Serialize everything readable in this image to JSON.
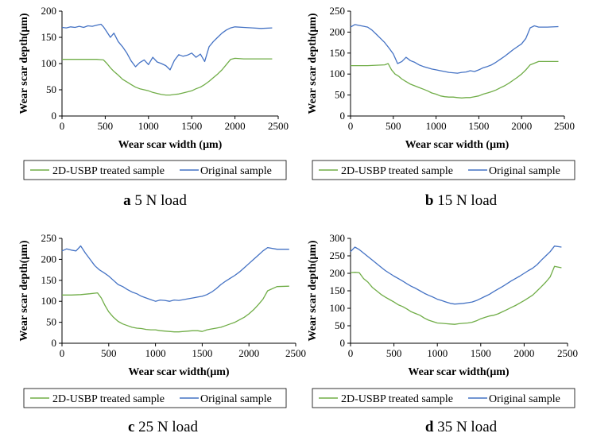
{
  "colors": {
    "treated": "#70ad47",
    "original": "#4472c4",
    "axis": "#000000",
    "legend_border": "#000000"
  },
  "chart_data": [
    {
      "type": "line",
      "panel": "a",
      "caption": {
        "letter": "a",
        "text": "5 N load"
      },
      "xlabel": "Wear scar width (μm)",
      "ylabel": "Wear scar depth(μm)",
      "xlim": [
        0,
        2500
      ],
      "ylim": [
        0,
        200
      ],
      "xticks": [
        0,
        500,
        1000,
        1500,
        2000,
        2500
      ],
      "yticks": [
        0,
        50,
        100,
        150,
        200
      ],
      "legend_placement": "bottom",
      "series": [
        {
          "name": "2D-USBP treated sample",
          "color_key": "treated",
          "x": [
            0,
            100,
            200,
            300,
            400,
            480,
            520,
            560,
            600,
            650,
            700,
            750,
            800,
            850,
            900,
            950,
            1000,
            1050,
            1100,
            1150,
            1200,
            1250,
            1300,
            1350,
            1400,
            1450,
            1500,
            1550,
            1600,
            1650,
            1700,
            1750,
            1800,
            1850,
            1900,
            1950,
            2000,
            2100,
            2200,
            2300,
            2430
          ],
          "y": [
            108,
            108,
            108,
            108,
            108,
            107,
            100,
            92,
            85,
            78,
            70,
            65,
            60,
            55,
            52,
            50,
            48,
            45,
            43,
            41,
            40,
            40,
            41,
            42,
            44,
            46,
            48,
            52,
            55,
            60,
            66,
            73,
            80,
            88,
            98,
            108,
            110,
            109,
            109,
            109,
            109
          ]
        },
        {
          "name": "Original sample",
          "color_key": "original",
          "x": [
            0,
            50,
            100,
            150,
            200,
            250,
            300,
            350,
            400,
            450,
            480,
            520,
            560,
            600,
            650,
            700,
            750,
            800,
            850,
            900,
            950,
            1000,
            1050,
            1100,
            1150,
            1200,
            1250,
            1300,
            1350,
            1400,
            1450,
            1500,
            1550,
            1600,
            1650,
            1700,
            1750,
            1800,
            1850,
            1900,
            1950,
            2000,
            2100,
            2200,
            2300,
            2430
          ],
          "y": [
            169,
            168,
            170,
            169,
            171,
            169,
            172,
            171,
            173,
            175,
            170,
            160,
            150,
            158,
            142,
            132,
            120,
            105,
            94,
            102,
            107,
            98,
            112,
            103,
            100,
            96,
            88,
            106,
            117,
            114,
            116,
            120,
            112,
            118,
            104,
            132,
            142,
            150,
            158,
            164,
            168,
            170,
            169,
            168,
            167,
            168
          ]
        }
      ]
    },
    {
      "type": "line",
      "panel": "b",
      "caption": {
        "letter": "b",
        "text": "15 N load"
      },
      "xlabel": "Wear scar width (μm)",
      "ylabel": "Wear scar depth(μm)",
      "xlim": [
        0,
        2500
      ],
      "ylim": [
        0,
        250
      ],
      "xticks": [
        0,
        500,
        1000,
        1500,
        2000,
        2500
      ],
      "yticks": [
        0,
        50,
        100,
        150,
        200,
        250
      ],
      "legend_placement": "bottom",
      "series": [
        {
          "name": "2D-USBP treated sample",
          "color_key": "treated",
          "x": [
            0,
            100,
            200,
            300,
            400,
            440,
            480,
            520,
            560,
            600,
            650,
            700,
            750,
            800,
            850,
            900,
            950,
            1000,
            1050,
            1100,
            1150,
            1200,
            1250,
            1300,
            1350,
            1400,
            1450,
            1500,
            1550,
            1600,
            1650,
            1700,
            1750,
            1800,
            1850,
            1900,
            1950,
            2000,
            2050,
            2100,
            2200,
            2300,
            2430
          ],
          "y": [
            120,
            120,
            120,
            121,
            122,
            125,
            110,
            100,
            95,
            88,
            82,
            76,
            72,
            68,
            64,
            60,
            55,
            52,
            48,
            46,
            45,
            45,
            44,
            43,
            44,
            44,
            46,
            48,
            52,
            55,
            58,
            62,
            67,
            72,
            78,
            85,
            92,
            100,
            110,
            122,
            130,
            130,
            130
          ]
        },
        {
          "name": "Original sample",
          "color_key": "original",
          "x": [
            0,
            50,
            100,
            150,
            200,
            250,
            300,
            350,
            400,
            450,
            500,
            550,
            600,
            650,
            700,
            750,
            800,
            850,
            900,
            950,
            1000,
            1050,
            1100,
            1150,
            1200,
            1250,
            1300,
            1350,
            1400,
            1450,
            1500,
            1550,
            1600,
            1650,
            1700,
            1750,
            1800,
            1850,
            1900,
            1950,
            2000,
            2050,
            2100,
            2150,
            2200,
            2300,
            2430
          ],
          "y": [
            212,
            218,
            216,
            214,
            212,
            205,
            195,
            185,
            175,
            162,
            148,
            125,
            130,
            140,
            132,
            128,
            122,
            118,
            115,
            112,
            110,
            108,
            106,
            104,
            103,
            102,
            104,
            105,
            108,
            106,
            110,
            115,
            118,
            122,
            128,
            135,
            142,
            150,
            158,
            165,
            172,
            185,
            210,
            215,
            212,
            212,
            213
          ]
        }
      ]
    },
    {
      "type": "line",
      "panel": "c",
      "caption": {
        "letter": "c",
        "text": "25 N load"
      },
      "xlabel": "Wear scar width(μm)",
      "ylabel": "Wear scar depth(μm)",
      "xlim": [
        0,
        2500
      ],
      "ylim": [
        0,
        250
      ],
      "xticks": [
        0,
        500,
        1000,
        1500,
        2000,
        2500
      ],
      "yticks": [
        0,
        50,
        100,
        150,
        200,
        250
      ],
      "legend_placement": "bottom",
      "series": [
        {
          "name": "2D-USBP treated sample",
          "color_key": "treated",
          "x": [
            0,
            100,
            200,
            300,
            380,
            420,
            460,
            500,
            550,
            600,
            650,
            700,
            750,
            800,
            850,
            900,
            950,
            1000,
            1050,
            1100,
            1150,
            1200,
            1250,
            1300,
            1350,
            1400,
            1450,
            1500,
            1550,
            1600,
            1650,
            1700,
            1750,
            1800,
            1850,
            1900,
            1950,
            2000,
            2050,
            2100,
            2150,
            2200,
            2300,
            2430
          ],
          "y": [
            115,
            115,
            116,
            118,
            120,
            108,
            90,
            75,
            62,
            52,
            46,
            42,
            38,
            36,
            35,
            33,
            32,
            32,
            30,
            29,
            28,
            27,
            27,
            28,
            29,
            30,
            30,
            28,
            32,
            34,
            36,
            38,
            42,
            46,
            50,
            56,
            62,
            70,
            80,
            92,
            105,
            125,
            135,
            136
          ]
        },
        {
          "name": "Original sample",
          "color_key": "original",
          "x": [
            0,
            50,
            100,
            150,
            200,
            250,
            300,
            350,
            400,
            450,
            500,
            550,
            600,
            650,
            700,
            750,
            800,
            850,
            900,
            950,
            1000,
            1050,
            1100,
            1150,
            1200,
            1250,
            1300,
            1350,
            1400,
            1450,
            1500,
            1550,
            1600,
            1650,
            1700,
            1750,
            1800,
            1850,
            1900,
            1950,
            2000,
            2050,
            2100,
            2150,
            2200,
            2300,
            2430
          ],
          "y": [
            220,
            225,
            222,
            220,
            232,
            215,
            200,
            185,
            175,
            168,
            160,
            150,
            140,
            135,
            128,
            122,
            118,
            112,
            108,
            104,
            100,
            103,
            102,
            100,
            103,
            102,
            104,
            106,
            108,
            110,
            112,
            116,
            122,
            130,
            140,
            148,
            155,
            162,
            170,
            180,
            190,
            200,
            210,
            220,
            228,
            224,
            224
          ]
        }
      ]
    },
    {
      "type": "line",
      "panel": "d",
      "caption": {
        "letter": "d",
        "text": "35 N load"
      },
      "xlabel": "Wear scar width(μm)",
      "ylabel": "Wear scar depth(μm)",
      "xlim": [
        0,
        2500
      ],
      "ylim": [
        0,
        300
      ],
      "xticks": [
        0,
        500,
        1000,
        1500,
        2000,
        2500
      ],
      "yticks": [
        0,
        50,
        100,
        150,
        200,
        250,
        300
      ],
      "legend_placement": "bottom",
      "series": [
        {
          "name": "2D-USBP treated sample",
          "color_key": "treated",
          "x": [
            0,
            50,
            100,
            150,
            200,
            250,
            300,
            350,
            400,
            450,
            500,
            550,
            600,
            650,
            700,
            750,
            800,
            850,
            900,
            950,
            1000,
            1050,
            1100,
            1150,
            1200,
            1250,
            1300,
            1350,
            1400,
            1450,
            1500,
            1550,
            1600,
            1650,
            1700,
            1750,
            1800,
            1850,
            1900,
            1950,
            2000,
            2050,
            2100,
            2150,
            2200,
            2250,
            2300,
            2350,
            2430
          ],
          "y": [
            202,
            203,
            202,
            185,
            175,
            160,
            150,
            140,
            132,
            125,
            118,
            110,
            105,
            98,
            90,
            85,
            80,
            72,
            66,
            62,
            58,
            57,
            56,
            55,
            54,
            56,
            57,
            58,
            60,
            64,
            70,
            74,
            78,
            80,
            84,
            90,
            96,
            102,
            108,
            115,
            122,
            130,
            138,
            150,
            162,
            175,
            190,
            220,
            216
          ]
        },
        {
          "name": "Original sample",
          "color_key": "original",
          "x": [
            0,
            50,
            100,
            150,
            200,
            250,
            300,
            350,
            400,
            450,
            500,
            550,
            600,
            650,
            700,
            750,
            800,
            850,
            900,
            950,
            1000,
            1050,
            1100,
            1150,
            1200,
            1250,
            1300,
            1350,
            1400,
            1450,
            1500,
            1550,
            1600,
            1650,
            1700,
            1750,
            1800,
            1850,
            1900,
            1950,
            2000,
            2050,
            2100,
            2150,
            2200,
            2250,
            2300,
            2350,
            2430
          ],
          "y": [
            262,
            275,
            268,
            258,
            248,
            238,
            228,
            218,
            208,
            200,
            192,
            185,
            178,
            170,
            163,
            157,
            150,
            143,
            137,
            132,
            126,
            122,
            118,
            114,
            112,
            113,
            114,
            116,
            118,
            122,
            128,
            134,
            140,
            148,
            155,
            162,
            170,
            178,
            185,
            192,
            200,
            208,
            215,
            225,
            238,
            250,
            262,
            278,
            275
          ]
        }
      ]
    }
  ]
}
